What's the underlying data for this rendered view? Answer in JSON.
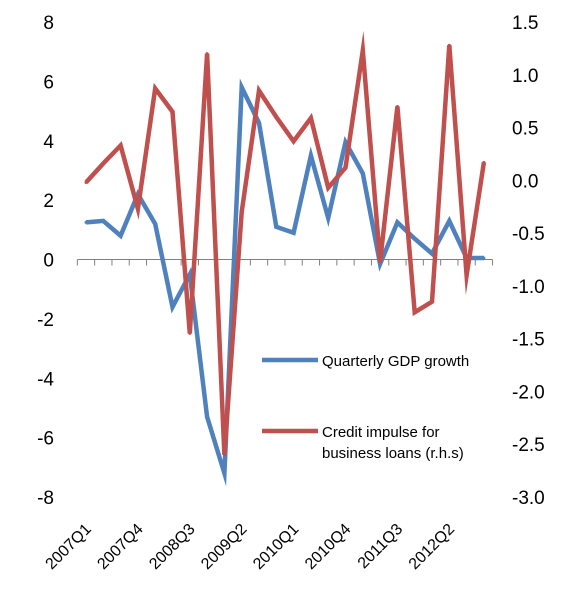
{
  "chart_data": {
    "type": "line",
    "categories": [
      "2007Q1",
      "2007Q2",
      "2007Q3",
      "2007Q4",
      "2008Q1",
      "2008Q2",
      "2008Q3",
      "2008Q4",
      "2009Q1",
      "2009Q2",
      "2009Q3",
      "2009Q4",
      "2010Q1",
      "2010Q2",
      "2010Q3",
      "2010Q4",
      "2011Q1",
      "2011Q2",
      "2011Q3",
      "2011Q4",
      "2012Q1",
      "2012Q2",
      "2012Q3",
      "2012Q4"
    ],
    "x_tick_labels": [
      {
        "index": 0,
        "label": "2007Q1"
      },
      {
        "index": 3,
        "label": "2007Q4"
      },
      {
        "index": 6,
        "label": "2008Q3"
      },
      {
        "index": 9,
        "label": "2009Q2"
      },
      {
        "index": 12,
        "label": "2010Q1"
      },
      {
        "index": 15,
        "label": "2010Q4"
      },
      {
        "index": 18,
        "label": "2011Q3"
      },
      {
        "index": 21,
        "label": "2012Q2"
      }
    ],
    "left_axis": {
      "ylim": [
        -8,
        8
      ],
      "ticks": [
        "8",
        "6",
        "4",
        "2",
        "0",
        "-2",
        "-4",
        "-6",
        "-8"
      ],
      "tick_values": [
        8,
        6,
        4,
        2,
        0,
        -2,
        -4,
        -6,
        -8
      ]
    },
    "right_axis": {
      "ylim": [
        -3.0,
        1.5
      ],
      "ticks": [
        "1.5",
        "1.0",
        "0.5",
        "0.0",
        "-0.5",
        "-1.0",
        "-1.5",
        "-2.0",
        "-2.5",
        "-3.0"
      ],
      "tick_values": [
        1.5,
        1.0,
        0.5,
        0.0,
        -0.5,
        -1.0,
        -1.5,
        -2.0,
        -2.5,
        -3.0
      ]
    },
    "series": [
      {
        "name": "Quarterly GDP growth",
        "axis": "left",
        "color": "#4f81bd",
        "values": [
          1.25,
          1.3,
          0.8,
          2.2,
          1.2,
          -1.6,
          -0.5,
          -5.3,
          -7.2,
          5.8,
          4.6,
          1.1,
          0.9,
          3.5,
          1.4,
          3.95,
          2.9,
          -0.15,
          1.25,
          0.7,
          0.2,
          1.3,
          0.05,
          0.05
        ]
      },
      {
        "name": "Credit impulse for business loans (r.h.s)",
        "axis": "right",
        "color": "#c0504d",
        "values": [
          -0.02,
          0.16,
          0.33,
          -0.27,
          0.87,
          0.65,
          -1.45,
          1.2,
          -2.6,
          -0.3,
          0.85,
          0.6,
          0.37,
          0.59,
          -0.07,
          0.12,
          1.23,
          -0.77,
          0.7,
          -1.25,
          -1.15,
          1.28,
          -0.9,
          0.17
        ]
      }
    ],
    "legend": {
      "placement": "bottom-right",
      "entries": [
        {
          "lines": [
            "Quarterly GDP growth"
          ],
          "color": "#4f81bd"
        },
        {
          "lines": [
            "Credit impulse for",
            "business loans (r.h.s)"
          ],
          "color": "#c0504d"
        }
      ]
    },
    "grid": false,
    "title": "",
    "xlabel": "",
    "ylabel": ""
  }
}
